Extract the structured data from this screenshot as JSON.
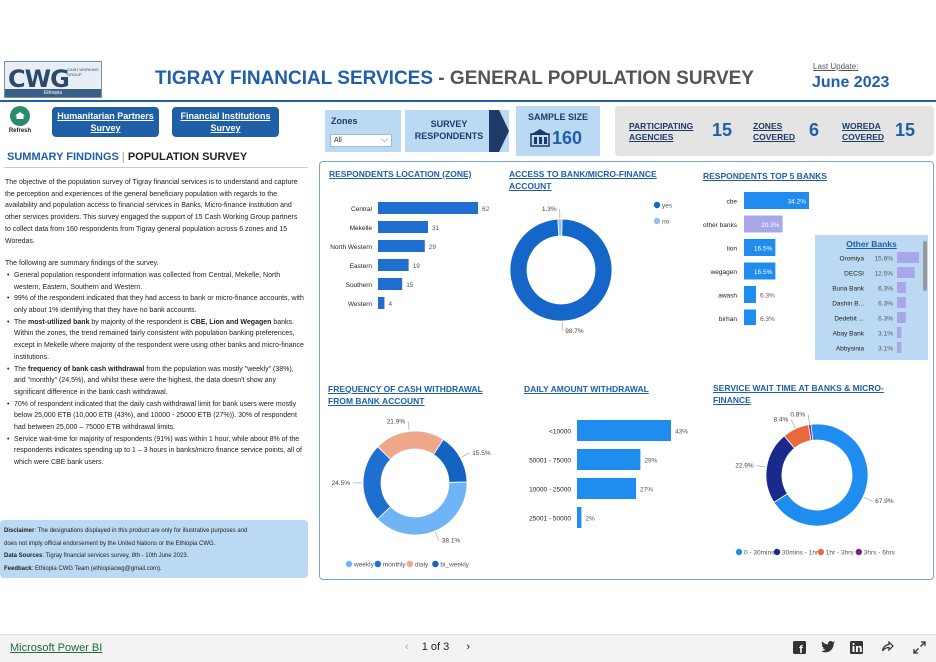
{
  "header": {
    "logo_text": "CWG",
    "logo_small": "CASH WORKING GROUP",
    "logo_sub": "Ethiopia",
    "title_main": "TIGRAY FINANCIAL SERVICES",
    "title_sep": " - ",
    "title_sub": "GENERAL POPULATION SURVEY",
    "last_update_label": "Last Update:",
    "last_update_value": "June 2023"
  },
  "nav": {
    "refresh_label": "Refresh",
    "btn_humanitarian": "Humanitarian Partners Survey",
    "btn_financial": "Financial Institutions Survey"
  },
  "filters": {
    "zones_label": "Zones",
    "zones_value": "All",
    "survey_label": "SURVEY RESPONDENTS"
  },
  "kpis": {
    "sample_label": "SAMPLE SIZE",
    "sample_value": "160",
    "agencies_label_1": "PARTICIPATING",
    "agencies_label_2": "AGENCIES",
    "agencies_value": "15",
    "zones_label_1": "ZONES",
    "zones_label_2": "COVERED",
    "zones_value": "6",
    "woreda_label_1": "WOREDA",
    "woreda_label_2": "COVERED",
    "woreda_value": "15"
  },
  "summary": {
    "heading_a": "SUMMARY FINDINGS",
    "heading_sep": " | ",
    "heading_b": "POPULATION SURVEY",
    "p1": "The objective of the population survey of Tigray financial services is to understand and capture the perception and experiences of the general beneficiary population with regards to the availability and population access to financial services in Banks, Micro-finance institution and other services providers. This survey engaged the support of 15 Cash Working Group partners to collect data from 160 respondents from Tigray general population across 6 zones and 15 Woredas.",
    "p2": "The following are summary findings of the survey.",
    "b1": "General population respondent information was collected from Central, Mekelle, North western, Eastern, Southern and Western.",
    "b2": "99% of the respondent indicated that they had access to bank or micro-finance accounts, with only about 1% identifying that they have no bank accounts.",
    "b3a": "The ",
    "b3b": "most-utilized bank",
    "b3c": " by majority of the respondent is ",
    "b3d": "CBE, Lion and Wegagen",
    "b3e": " banks. Within the zones, the trend remained fairly consistent with population banking preferences, except in Mekelle where majority of the respondent were using other banks and micro-finance institutions.",
    "b4a": " The ",
    "b4b": "frequency of bank cash withdrawal",
    "b4c": " from the population was mostly \"weekly\" (38%), and \"monthly\" (24.5%), and whilst these were the highest, the data doesn't show any significant difference in the bank cash withdrawal.",
    "b5": " 70% of respondent indicated that the daily cash withdrawal limit for bank users were mostly below 25,000 ETB (10,000 ETB (43%), and 10000 - 25000 ETB (27%)). 30% of respondent had between 25,000 – 75000 ETB withdrawal limits.",
    "b6": "Service wait-time for majority of respondents (91%) was within 1 hour, while about 8% of the respondents indicates spending up to 1 – 3 hours in banks/micro finance service points, all of which were CBE bank users."
  },
  "disclaimer": {
    "l1_label": "Disclaimer",
    "l1_text": ": The designations displayed in this product are only for illustrative purposes and",
    "l2_text": "does not imply official endorsement by the United Nations or the Ethiopia CWG.",
    "l3_label": "Data Sources",
    "l3_text": ": Tigray financial services survey, 8th - 10th June 2023.",
    "l4_label": "Feedback",
    "l4_text": ": Ethiopia CWG Team (ethiopiacwg@gmail.com)."
  },
  "chart_data": [
    {
      "type": "bar",
      "title": "RESPONDENTS LOCATION (ZONE)",
      "categories": [
        "Central",
        "Mekelle",
        "North Western",
        "Eastern",
        "Southern",
        "Western"
      ],
      "values": [
        62,
        31,
        29,
        19,
        15,
        4
      ],
      "color": "#1f6fd1"
    },
    {
      "type": "pie",
      "title": "ACCESS TO BANK/MICRO-FINANCE ACCOUNT",
      "labels": [
        "yes",
        "no"
      ],
      "values": [
        98.7,
        1.3
      ],
      "value_labels": [
        "98.7%",
        "1.3%"
      ],
      "colors": [
        "#1466c9",
        "#8fc0f0"
      ],
      "legend": "top-right"
    },
    {
      "type": "bar",
      "title": "RESPONDENTS TOP 5 BANKS",
      "categories": [
        "cbe",
        "other banks",
        "lion",
        "wegagen",
        "awash",
        "birhan"
      ],
      "values": [
        34.2,
        20.3,
        16.5,
        16.5,
        6.3,
        6.3
      ],
      "value_labels": [
        "34.2%",
        "20.3%",
        "16.5%",
        "16.5%",
        "6.3%",
        "6.3%"
      ],
      "colors": [
        "#1f8cf0",
        "#a8a8e8",
        "#1f8cf0",
        "#1f8cf0",
        "#1f8cf0",
        "#1f8cf0"
      ]
    },
    {
      "type": "bar",
      "title": "Other Banks",
      "categories": [
        "Oromiya",
        "DECSI",
        "Buna Bank",
        "Dashin B...",
        "Dedebit ...",
        "Abay Bank",
        "Abbysinia"
      ],
      "values": [
        15.6,
        12.5,
        6.3,
        6.3,
        6.3,
        3.1,
        3.1
      ],
      "value_labels": [
        "15.6%",
        "12.5%",
        "6.3%",
        "6.3%",
        "6.3%",
        "3.1%",
        "3.1%"
      ],
      "color": "#a8a8e8"
    },
    {
      "type": "pie",
      "title": "FREQUENCY OF CASH WITHDRAWAL FROM BANK ACCOUNT",
      "labels": [
        "weekly",
        "monthly",
        "dialy",
        "bi_weekly"
      ],
      "values": [
        38.1,
        24.5,
        21.9,
        15.5
      ],
      "value_labels": [
        "38.1%",
        "24.5%",
        "21.9%",
        "15.5%"
      ],
      "colors": [
        "#6fb4f5",
        "#1f6fd1",
        "#f0a88a",
        "#1563c0"
      ],
      "legend": "bottom"
    },
    {
      "type": "bar",
      "title": "DAILY AMOUNT WITHDRAWAL",
      "categories": [
        "<10000",
        "50001 - 75000",
        "10000 - 25000",
        "25001 - 50000"
      ],
      "values": [
        43,
        29,
        27,
        2
      ],
      "value_labels": [
        "43%",
        "29%",
        "27%",
        "2%"
      ],
      "color": "#1f8cf0"
    },
    {
      "type": "pie",
      "title": "SERVICE WAIT TIME AT BANKS & MICRO-FINANCE",
      "labels": [
        "0 - 30mins",
        "30mins - 1hr",
        "1hr - 3hrs",
        "3hrs - 6hrs"
      ],
      "values": [
        67.9,
        22.9,
        8.4,
        0.8
      ],
      "value_labels": [
        "67.9%",
        "22.9%",
        "8.4%",
        "0.8%"
      ],
      "colors": [
        "#1f8cf0",
        "#1a2a8c",
        "#e8693a",
        "#7a1f8c"
      ],
      "legend": "bottom"
    }
  ],
  "footer": {
    "brand": "Microsoft Power BI",
    "page": "1 of 3",
    "prev": "‹",
    "next": "›",
    "icons": [
      "facebook-icon",
      "twitter-icon",
      "linkedin-icon",
      "share-icon",
      "fullscreen-icon"
    ]
  }
}
